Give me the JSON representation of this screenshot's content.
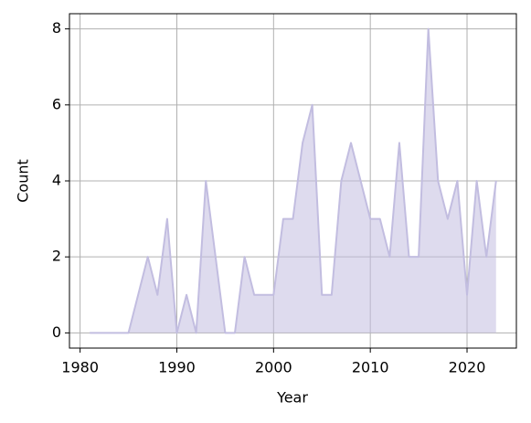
{
  "chart_data": {
    "type": "area",
    "x_label": "Year",
    "y_label": "Count",
    "x": [
      1981,
      1982,
      1983,
      1984,
      1985,
      1986,
      1987,
      1988,
      1989,
      1990,
      1991,
      1992,
      1993,
      1994,
      1995,
      1996,
      1997,
      1998,
      1999,
      2000,
      2001,
      2002,
      2003,
      2004,
      2005,
      2006,
      2007,
      2008,
      2009,
      2010,
      2011,
      2012,
      2013,
      2014,
      2015,
      2016,
      2017,
      2018,
      2019,
      2020,
      2021,
      2022,
      2023
    ],
    "values": [
      0,
      0,
      0,
      0,
      0,
      1,
      2,
      1,
      3,
      0,
      1,
      0,
      4,
      2,
      0,
      0,
      2,
      1,
      1,
      1,
      3,
      3,
      5,
      6,
      1,
      1,
      4,
      5,
      4,
      3,
      3,
      2,
      5,
      2,
      2,
      8,
      4,
      3,
      4,
      1,
      4,
      2,
      4
    ],
    "color": "#c2bde0",
    "xlim": [
      1978.9,
      2025.1
    ],
    "xticks": [
      1980,
      1990,
      2000,
      2010,
      2020
    ],
    "ylim": [
      -0.4,
      8.4
    ],
    "yticks": [
      0,
      2,
      4,
      6,
      8
    ],
    "grid": true
  }
}
